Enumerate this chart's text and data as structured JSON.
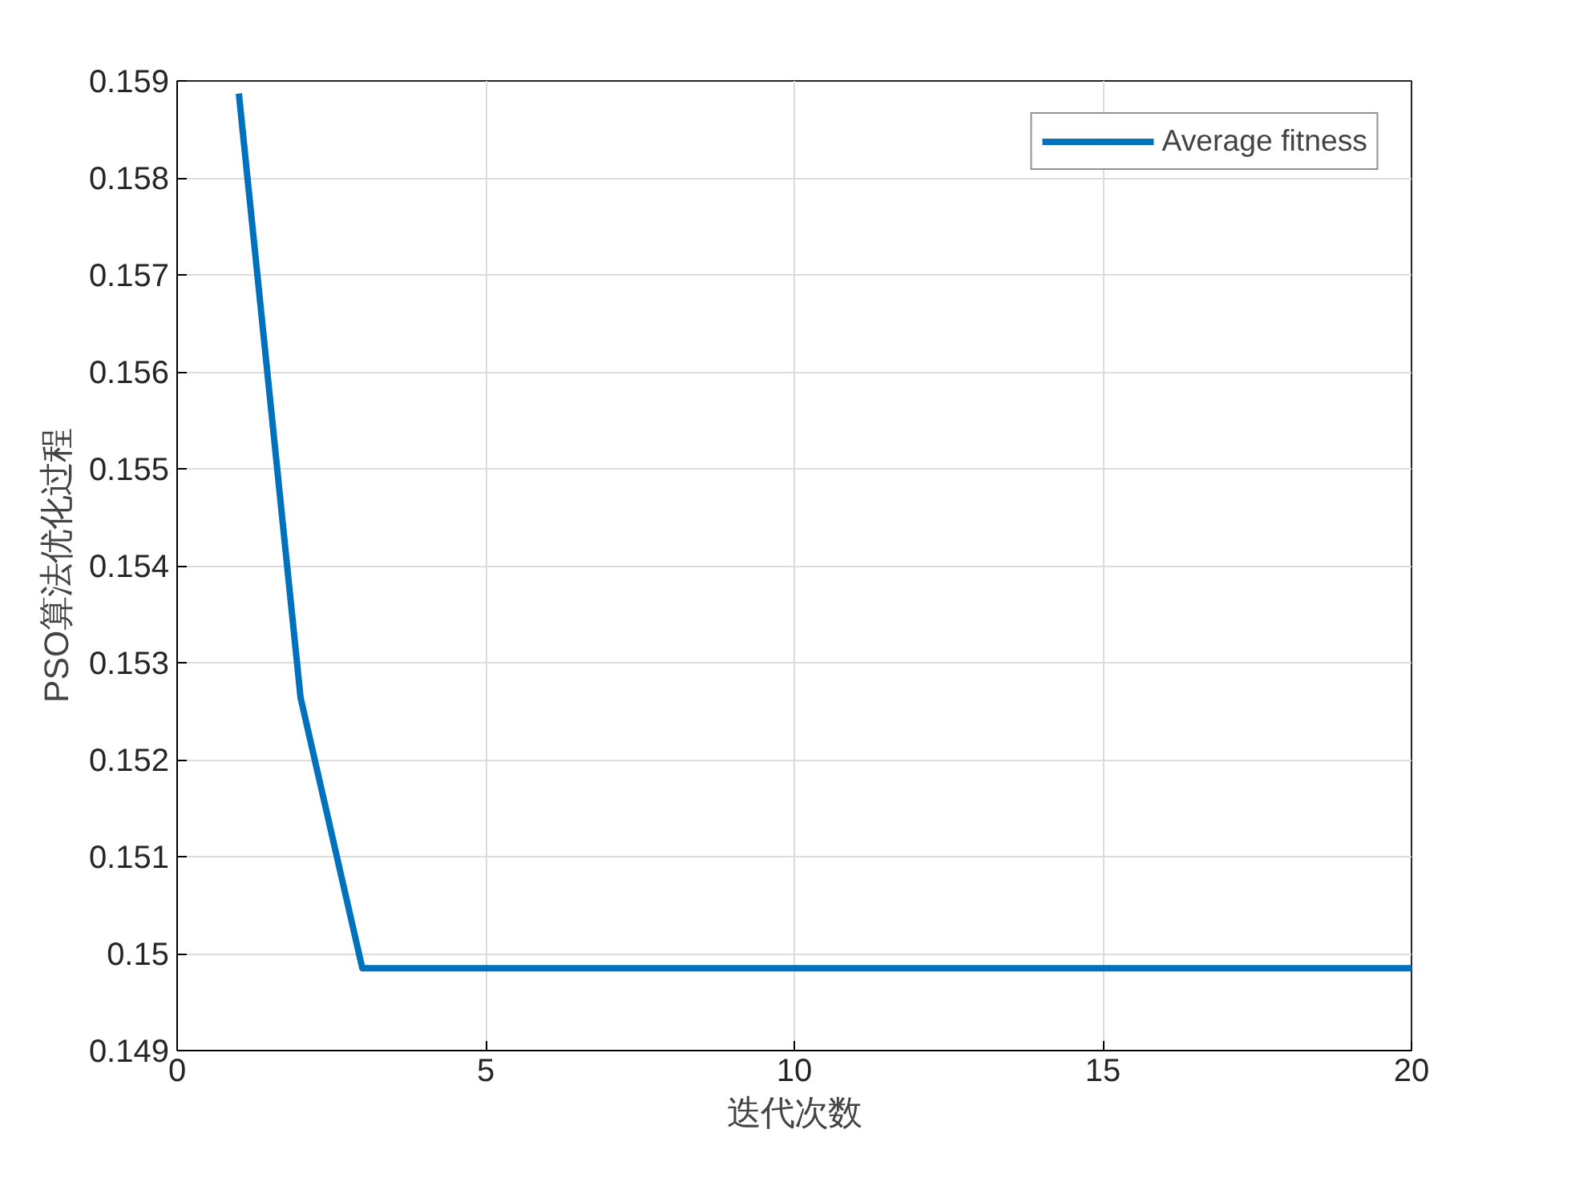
{
  "chart_data": {
    "type": "line",
    "xlabel": "迭代次数",
    "ylabel": "PSO算法优化过程",
    "x": [
      1,
      2,
      3,
      4,
      5,
      6,
      7,
      8,
      9,
      10,
      11,
      12,
      13,
      14,
      15,
      16,
      17,
      18,
      19,
      20
    ],
    "series": [
      {
        "name": "Average fitness",
        "color": "#0072bd",
        "values": [
          0.15887,
          0.15264,
          0.14985,
          0.14985,
          0.14985,
          0.14985,
          0.14985,
          0.14985,
          0.14985,
          0.14985,
          0.14985,
          0.14985,
          0.14985,
          0.14985,
          0.14985,
          0.14985,
          0.14985,
          0.14985,
          0.14985,
          0.14985
        ]
      }
    ],
    "xlim": [
      0,
      20
    ],
    "xticks": [
      0,
      5,
      10,
      15,
      20
    ],
    "ylim": [
      0.149,
      0.159
    ],
    "yticks": [
      0.149,
      0.15,
      0.151,
      0.152,
      0.153,
      0.154,
      0.155,
      0.156,
      0.157,
      0.158,
      0.159
    ],
    "grid": true,
    "legend": "top right",
    "line_style": "solid",
    "marker": "none"
  }
}
